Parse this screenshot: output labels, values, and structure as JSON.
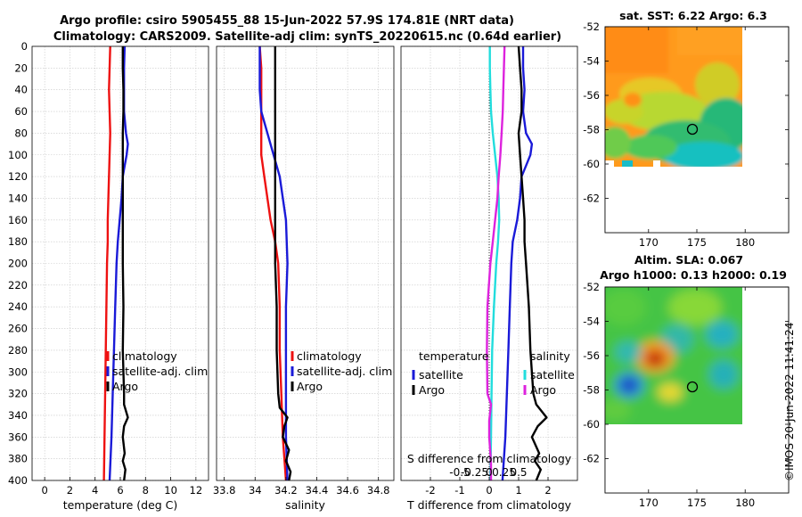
{
  "title": {
    "line1": "Argo profile: csiro 5905455_88 15-Jun-2022 57.9S 174.81E (NRT data)",
    "line2": "Climatology: CARS2009. Satellite-adj clim: synTS_20220615.nc (0.64d earlier)"
  },
  "watermark": "©IMOS 20-Jun-2022 11:41:24",
  "colors": {
    "red": "#ee1111",
    "blue": "#1a1ad8",
    "black": "#000000",
    "cyan": "#22dddd",
    "magenta": "#dd22dd",
    "grid": "#c8c8c8"
  },
  "chart_data": [
    {
      "type": "line",
      "id": "temperature",
      "xlabel": "temperature (deg C)",
      "ylabel": "",
      "xlim": [
        -1,
        13
      ],
      "ylim": [
        400,
        0
      ],
      "xticks": [
        0,
        2,
        4,
        6,
        8,
        10,
        12
      ],
      "yticks": [
        0,
        20,
        40,
        60,
        80,
        100,
        120,
        140,
        160,
        180,
        200,
        220,
        240,
        260,
        280,
        300,
        320,
        340,
        360,
        380,
        400
      ],
      "grid": true,
      "legend": {
        "position": "bottom-center",
        "entries": [
          "climatology",
          "satellite-adj. clim",
          "Argo"
        ]
      },
      "series": [
        {
          "name": "climatology",
          "color": "red",
          "points": [
            [
              5.2,
              0
            ],
            [
              5.15,
              20
            ],
            [
              5.1,
              40
            ],
            [
              5.15,
              60
            ],
            [
              5.2,
              80
            ],
            [
              5.15,
              100
            ],
            [
              5.1,
              120
            ],
            [
              5.05,
              140
            ],
            [
              5.0,
              160
            ],
            [
              5.0,
              180
            ],
            [
              4.95,
              200
            ],
            [
              4.9,
              240
            ],
            [
              4.85,
              280
            ],
            [
              4.8,
              320
            ],
            [
              4.75,
              360
            ],
            [
              4.7,
              400
            ]
          ]
        },
        {
          "name": "satellite-adj. clim",
          "color": "blue",
          "points": [
            [
              6.35,
              0
            ],
            [
              6.3,
              20
            ],
            [
              6.3,
              40
            ],
            [
              6.3,
              60
            ],
            [
              6.45,
              80
            ],
            [
              6.6,
              90
            ],
            [
              6.5,
              100
            ],
            [
              6.35,
              110
            ],
            [
              6.2,
              120
            ],
            [
              6.1,
              140
            ],
            [
              5.95,
              160
            ],
            [
              5.8,
              180
            ],
            [
              5.7,
              200
            ],
            [
              5.6,
              240
            ],
            [
              5.5,
              280
            ],
            [
              5.4,
              320
            ],
            [
              5.3,
              360
            ],
            [
              5.15,
              400
            ]
          ]
        },
        {
          "name": "Argo",
          "color": "black",
          "points": [
            [
              6.2,
              0
            ],
            [
              6.2,
              20
            ],
            [
              6.25,
              40
            ],
            [
              6.25,
              60
            ],
            [
              6.2,
              80
            ],
            [
              6.2,
              100
            ],
            [
              6.2,
              120
            ],
            [
              6.2,
              160
            ],
            [
              6.2,
              200
            ],
            [
              6.25,
              240
            ],
            [
              6.2,
              280
            ],
            [
              6.3,
              320
            ],
            [
              6.3,
              330
            ],
            [
              6.6,
              342
            ],
            [
              6.3,
              350
            ],
            [
              6.2,
              360
            ],
            [
              6.35,
              375
            ],
            [
              6.2,
              382
            ],
            [
              6.4,
              390
            ],
            [
              6.3,
              400
            ]
          ]
        }
      ]
    },
    {
      "type": "line",
      "id": "salinity",
      "xlabel": "salinity",
      "xlim": [
        33.75,
        34.9
      ],
      "ylim": [
        400,
        0
      ],
      "xticks": [
        33.8,
        34,
        34.2,
        34.4,
        34.6,
        34.8
      ],
      "xtick_labels": [
        "33.8",
        "34",
        "34.2",
        "34.4",
        "34.6",
        "34.8"
      ],
      "grid": true,
      "legend": {
        "position": "bottom-center",
        "entries": [
          "climatology",
          "satellite-adj. clim",
          "Argo"
        ]
      },
      "series": [
        {
          "name": "climatology",
          "color": "red",
          "points": [
            [
              34.03,
              0
            ],
            [
              34.04,
              20
            ],
            [
              34.04,
              60
            ],
            [
              34.04,
              100
            ],
            [
              34.06,
              120
            ],
            [
              34.08,
              140
            ],
            [
              34.1,
              160
            ],
            [
              34.13,
              180
            ],
            [
              34.15,
              200
            ],
            [
              34.16,
              240
            ],
            [
              34.16,
              280
            ],
            [
              34.17,
              320
            ],
            [
              34.18,
              360
            ],
            [
              34.2,
              400
            ]
          ]
        },
        {
          "name": "satellite-adj. clim",
          "color": "blue",
          "points": [
            [
              34.03,
              0
            ],
            [
              34.03,
              20
            ],
            [
              34.03,
              40
            ],
            [
              34.04,
              60
            ],
            [
              34.08,
              80
            ],
            [
              34.12,
              100
            ],
            [
              34.16,
              120
            ],
            [
              34.18,
              140
            ],
            [
              34.2,
              160
            ],
            [
              34.21,
              200
            ],
            [
              34.2,
              240
            ],
            [
              34.2,
              280
            ],
            [
              34.2,
              320
            ],
            [
              34.2,
              360
            ],
            [
              34.21,
              400
            ]
          ]
        },
        {
          "name": "Argo",
          "color": "black",
          "points": [
            [
              34.13,
              0
            ],
            [
              34.13,
              40
            ],
            [
              34.13,
              80
            ],
            [
              34.13,
              120
            ],
            [
              34.13,
              160
            ],
            [
              34.13,
              200
            ],
            [
              34.14,
              240
            ],
            [
              34.14,
              280
            ],
            [
              34.15,
              320
            ],
            [
              34.16,
              333
            ],
            [
              34.21,
              342
            ],
            [
              34.19,
              350
            ],
            [
              34.18,
              360
            ],
            [
              34.22,
              372
            ],
            [
              34.2,
              382
            ],
            [
              34.23,
              392
            ],
            [
              34.22,
              400
            ]
          ]
        }
      ]
    },
    {
      "type": "line",
      "id": "difference",
      "xlabel": "T difference from climatology",
      "top_axis_label": "S difference from climatology",
      "xlim": [
        -3,
        3
      ],
      "ylim": [
        400,
        0
      ],
      "xticks": [
        -2,
        -1,
        0,
        1,
        2
      ],
      "xtick_labels": [
        "-2",
        "-1",
        "0",
        "1",
        "2"
      ],
      "top_ticks": [
        -1,
        -0.5,
        0,
        0.5,
        1
      ],
      "top_tick_labels": [
        "-0.5",
        "-0.25",
        "0",
        "0.25",
        "0.5"
      ],
      "grid": true,
      "legend_left": {
        "title": "temperature",
        "entries": [
          "satellite",
          "Argo"
        ]
      },
      "legend_right": {
        "title": "salinity",
        "entries": [
          "satellite",
          "Argo"
        ]
      },
      "series": [
        {
          "name": "temperature satellite",
          "color": "blue",
          "points": [
            [
              1.15,
              0
            ],
            [
              1.15,
              20
            ],
            [
              1.2,
              40
            ],
            [
              1.15,
              60
            ],
            [
              1.25,
              80
            ],
            [
              1.45,
              90
            ],
            [
              1.4,
              100
            ],
            [
              1.25,
              110
            ],
            [
              1.1,
              120
            ],
            [
              1.05,
              140
            ],
            [
              0.95,
              160
            ],
            [
              0.8,
              180
            ],
            [
              0.75,
              200
            ],
            [
              0.7,
              240
            ],
            [
              0.65,
              280
            ],
            [
              0.6,
              320
            ],
            [
              0.55,
              360
            ],
            [
              0.45,
              400
            ]
          ]
        },
        {
          "name": "temperature Argo",
          "color": "black",
          "points": [
            [
              1.0,
              0
            ],
            [
              1.05,
              20
            ],
            [
              1.1,
              40
            ],
            [
              1.1,
              60
            ],
            [
              1.0,
              80
            ],
            [
              1.05,
              100
            ],
            [
              1.1,
              120
            ],
            [
              1.15,
              140
            ],
            [
              1.2,
              160
            ],
            [
              1.2,
              180
            ],
            [
              1.25,
              200
            ],
            [
              1.35,
              240
            ],
            [
              1.4,
              280
            ],
            [
              1.5,
              320
            ],
            [
              1.6,
              330
            ],
            [
              1.95,
              342
            ],
            [
              1.65,
              350
            ],
            [
              1.45,
              360
            ],
            [
              1.7,
              375
            ],
            [
              1.55,
              382
            ],
            [
              1.75,
              390
            ],
            [
              1.6,
              400
            ]
          ]
        },
        {
          "name": "salinity satellite",
          "color": "cyan",
          "points": [
            [
              0.02,
              0
            ],
            [
              0.02,
              20
            ],
            [
              0.04,
              40
            ],
            [
              0.06,
              60
            ],
            [
              0.12,
              80
            ],
            [
              0.2,
              100
            ],
            [
              0.28,
              120
            ],
            [
              0.32,
              140
            ],
            [
              0.34,
              160
            ],
            [
              0.3,
              180
            ],
            [
              0.24,
              200
            ],
            [
              0.16,
              240
            ],
            [
              0.1,
              280
            ],
            [
              0.08,
              320
            ],
            [
              0.06,
              360
            ],
            [
              0.04,
              400
            ]
          ]
        },
        {
          "name": "salinity Argo",
          "color": "magenta",
          "points": [
            [
              0.52,
              0
            ],
            [
              0.5,
              20
            ],
            [
              0.48,
              40
            ],
            [
              0.46,
              60
            ],
            [
              0.42,
              80
            ],
            [
              0.38,
              100
            ],
            [
              0.32,
              120
            ],
            [
              0.28,
              140
            ],
            [
              0.2,
              160
            ],
            [
              0.12,
              180
            ],
            [
              0.04,
              200
            ],
            [
              -0.06,
              240
            ],
            [
              -0.08,
              280
            ],
            [
              -0.06,
              320
            ],
            [
              0.06,
              330
            ],
            [
              0.0,
              345
            ],
            [
              0.0,
              360
            ],
            [
              0.04,
              375
            ],
            [
              0.06,
              385
            ],
            [
              0.06,
              400
            ]
          ]
        }
      ]
    },
    {
      "type": "heatmap",
      "id": "sst_map",
      "title": "sat. SST: 6.22 Argo: 6.3",
      "xlim": [
        165.5,
        184.5
      ],
      "ylim": [
        -64,
        -52
      ],
      "xticks": [
        170,
        175,
        180
      ],
      "yticks": [
        -52,
        -54,
        -56,
        -58,
        -60,
        -62
      ],
      "argo_position": [
        174.81,
        -57.9
      ]
    },
    {
      "type": "heatmap",
      "id": "sla_map",
      "title_line1": "Altim. SLA: 0.067",
      "title_line2": "Argo h1000: 0.13 h2000: 0.19",
      "xlim": [
        165.5,
        184.5
      ],
      "ylim": [
        -64,
        -52
      ],
      "xticks": [
        170,
        175,
        180
      ],
      "yticks": [
        -52,
        -54,
        -56,
        -58,
        -60,
        -62
      ],
      "argo_position": [
        174.81,
        -57.9
      ]
    }
  ]
}
